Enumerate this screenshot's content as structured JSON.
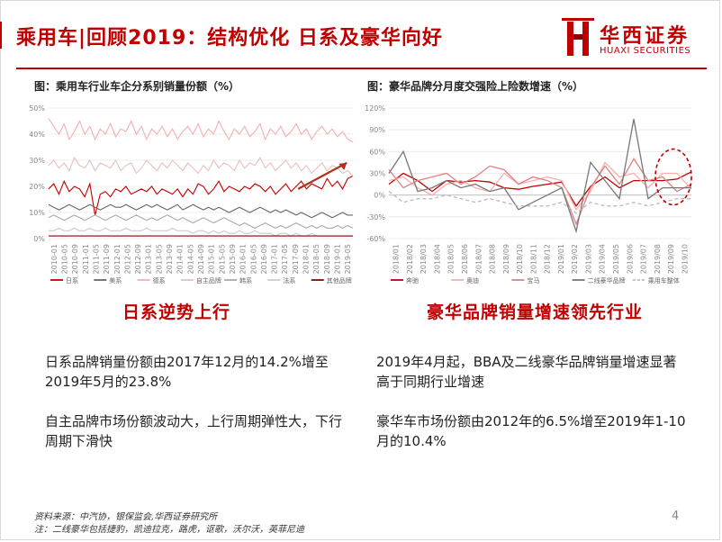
{
  "title": "乘用车|回顾2019：结构优化 日系及豪华向好",
  "logo": {
    "cn": "华西证券",
    "en": "HUAXI SECURITIES",
    "brand_color": "#c00000",
    "icon": "huaxi-logo-icon"
  },
  "left_chart": {
    "fig_title": "图：乘用车行业车企分系别销量份额（%）",
    "chart_data": {
      "type": "line",
      "ylim": [
        0,
        50
      ],
      "y_ticks": [
        "0%",
        "10%",
        "20%",
        "30%",
        "40%",
        "50%"
      ],
      "x_labels": [
        "2010-01",
        "2010-05",
        "2010-09",
        "2011-01",
        "2011-05",
        "2011-09",
        "2012-01",
        "2012-05",
        "2012-09",
        "2013-01",
        "2013-05",
        "2013-09",
        "2014-01",
        "2014-05",
        "2014-09",
        "2015-01",
        "2015-05",
        "2015-09",
        "2016-01",
        "2016-05",
        "2016-09",
        "2017-01",
        "2017-05",
        "2017-09",
        "2018-01",
        "2018-05",
        "2018-09",
        "2019-01",
        "2019-05"
      ],
      "series": [
        {
          "name": "日系",
          "color": "#c00000",
          "values": [
            19,
            21,
            17,
            22,
            18,
            20,
            19,
            16,
            21,
            9,
            17,
            18,
            16,
            19,
            18,
            20,
            17,
            18,
            19,
            18,
            20,
            17,
            19,
            18,
            17,
            19,
            16,
            19,
            17,
            21,
            20,
            17,
            19,
            22,
            18,
            20,
            19,
            18,
            20,
            19,
            21,
            20,
            18,
            20,
            17,
            19,
            21,
            18,
            20,
            22,
            19,
            21,
            20,
            19,
            23,
            20,
            22,
            19,
            23,
            24
          ]
        },
        {
          "name": "美系",
          "color": "#666666",
          "values": [
            13,
            12,
            11,
            12,
            13,
            12,
            11,
            12,
            13,
            12,
            11,
            12,
            13,
            12,
            12,
            13,
            12,
            11,
            12,
            13,
            12,
            13,
            12,
            11,
            12,
            13,
            11,
            12,
            13,
            12,
            11,
            12,
            11,
            12,
            11,
            10,
            11,
            12,
            11,
            10,
            11,
            12,
            11,
            10,
            11,
            10,
            11,
            10,
            9,
            10,
            9,
            8,
            9,
            10,
            9,
            8,
            9,
            10,
            9,
            9
          ]
        },
        {
          "name": "德系",
          "color": "#f4b0b0",
          "values": [
            46,
            43,
            40,
            44,
            38,
            41,
            45,
            40,
            43,
            38,
            42,
            40,
            44,
            39,
            42,
            41,
            45,
            40,
            43,
            38,
            42,
            40,
            43,
            39,
            42,
            38,
            41,
            43,
            40,
            44,
            39,
            42,
            40,
            45,
            41,
            38,
            42,
            40,
            43,
            39,
            41,
            44,
            38,
            42,
            40,
            43,
            39,
            41,
            44,
            40,
            42,
            38,
            41,
            43,
            40,
            42,
            39,
            41,
            38,
            37
          ]
        },
        {
          "name": "自主品牌",
          "color": "#e8c0c0",
          "values": [
            28,
            30,
            27,
            29,
            26,
            31,
            28,
            27,
            30,
            26,
            29,
            28,
            27,
            30,
            26,
            28,
            29,
            25,
            27,
            30,
            28,
            26,
            29,
            27,
            30,
            28,
            26,
            29,
            27,
            25,
            28,
            26,
            30,
            27,
            29,
            28,
            26,
            30,
            27,
            29,
            28,
            31,
            27,
            29,
            26,
            28,
            30,
            27,
            29,
            26,
            28,
            25,
            27,
            29,
            26,
            28,
            27,
            25,
            26,
            24
          ]
        },
        {
          "name": "韩系",
          "color": "#aaaaaa",
          "values": [
            8,
            9,
            8,
            7,
            8,
            9,
            8,
            7,
            8,
            9,
            8,
            7,
            8,
            9,
            8,
            7,
            8,
            9,
            8,
            7,
            8,
            7,
            8,
            9,
            8,
            7,
            8,
            7,
            6,
            7,
            8,
            7,
            6,
            7,
            8,
            7,
            6,
            5,
            6,
            5,
            4,
            5,
            6,
            5,
            4,
            5,
            4,
            5,
            6,
            5,
            4,
            5,
            4,
            5,
            4,
            4,
            5,
            4,
            5,
            4
          ]
        },
        {
          "name": "法系",
          "color": "#cccccc",
          "values": [
            3,
            3,
            4,
            3,
            3,
            4,
            3,
            3,
            4,
            3,
            3,
            4,
            3,
            3,
            3,
            4,
            3,
            3,
            3,
            4,
            3,
            3,
            3,
            3,
            4,
            3,
            3,
            3,
            2,
            3,
            3,
            2,
            3,
            2,
            3,
            2,
            2,
            3,
            2,
            2,
            3,
            2,
            2,
            2,
            1,
            2,
            2,
            1,
            2,
            1,
            1,
            2,
            1,
            1,
            1,
            1,
            1,
            1,
            1,
            1
          ]
        },
        {
          "name": "其他品牌",
          "color": "#8b0000",
          "values": [
            1,
            1,
            1,
            1,
            1,
            1,
            1,
            1,
            1,
            1,
            1,
            1,
            1,
            1,
            1,
            1,
            1,
            1,
            1,
            1,
            1,
            1,
            1,
            1,
            1,
            1,
            1,
            1,
            1,
            1,
            1,
            1,
            1,
            1,
            1,
            1,
            1,
            1,
            1,
            1,
            1,
            1,
            1,
            1,
            1,
            1,
            1,
            1,
            1,
            1,
            1,
            1,
            1,
            1,
            1,
            1,
            1,
            1,
            1,
            1
          ]
        }
      ],
      "trend_arrow": true,
      "grid": true,
      "legend": "bottom"
    }
  },
  "right_chart": {
    "fig_title": "图：豪华品牌分月度交强险上险数增速（%）",
    "chart_data": {
      "type": "line",
      "ylim": [
        -60,
        120
      ],
      "y_ticks": [
        "-60%",
        "-30%",
        "0%",
        "30%",
        "60%",
        "90%",
        "120%"
      ],
      "x_labels": [
        "2018/01",
        "2018/02",
        "2018/03",
        "2018/04",
        "2018/05",
        "2018/06",
        "2018/07",
        "2018/08",
        "2018/09",
        "2018/10",
        "2018/11",
        "2018/12",
        "2019/01",
        "2019/02",
        "2019/03",
        "2019/04",
        "2019/05",
        "2019/06",
        "2019/07",
        "2019/08",
        "2019/09",
        "2019/10"
      ],
      "series": [
        {
          "name": "奔驰",
          "color": "#c00000",
          "values": [
            15,
            30,
            20,
            5,
            20,
            18,
            20,
            18,
            10,
            8,
            12,
            15,
            18,
            -15,
            12,
            25,
            10,
            20,
            20,
            20,
            22,
            32
          ]
        },
        {
          "name": "奥迪",
          "color": "#f4b0b0",
          "values": [
            20,
            25,
            10,
            0,
            15,
            20,
            10,
            5,
            30,
            15,
            20,
            25,
            20,
            -20,
            5,
            45,
            25,
            30,
            10,
            30,
            30,
            8
          ]
        },
        {
          "name": "宝马",
          "color": "#e08080",
          "values": [
            35,
            10,
            20,
            25,
            30,
            15,
            25,
            40,
            35,
            15,
            25,
            20,
            10,
            -40,
            10,
            40,
            15,
            50,
            20,
            25,
            5,
            15
          ]
        },
        {
          "name": "二线豪华品牌",
          "color": "#777777",
          "values": [
            30,
            60,
            5,
            10,
            20,
            10,
            15,
            5,
            10,
            -20,
            -10,
            0,
            10,
            -50,
            45,
            20,
            -5,
            105,
            -5,
            10,
            10,
            10
          ]
        },
        {
          "name": "乘用车整体",
          "color": "#bbbbbb",
          "dashed": true,
          "values": [
            5,
            -10,
            -5,
            -5,
            0,
            -5,
            -10,
            -5,
            -10,
            -15,
            -15,
            -15,
            -10,
            -25,
            -10,
            -15,
            -15,
            -10,
            -15,
            -10,
            -5,
            -5
          ]
        }
      ],
      "highlight_circle": "last-months",
      "grid": true,
      "legend": "bottom"
    }
  },
  "left_section": {
    "heading": "日系逆势上行",
    "p1": "日系品牌销量份额由2017年12月的14.2%增至2019年5月的23.8%",
    "p2": "自主品牌市场份额波动大，上行周期弹性大，下行周期下滑快"
  },
  "right_section": {
    "heading": "豪华品牌销量增速领先行业",
    "p1": "2019年4月起，BBA及二线豪华品牌销量增速显著高于同期行业增速",
    "p2": "豪华车市场份额由2012年的6.5%增至2019年1-10月的10.4%"
  },
  "footer": {
    "source": "资料来源：中汽协，银保监会,华西证券研究所",
    "note": "注：二线豪华包括捷豹，凯迪拉克，路虎，讴歌，沃尔沃，英菲尼迪",
    "page": "4"
  }
}
